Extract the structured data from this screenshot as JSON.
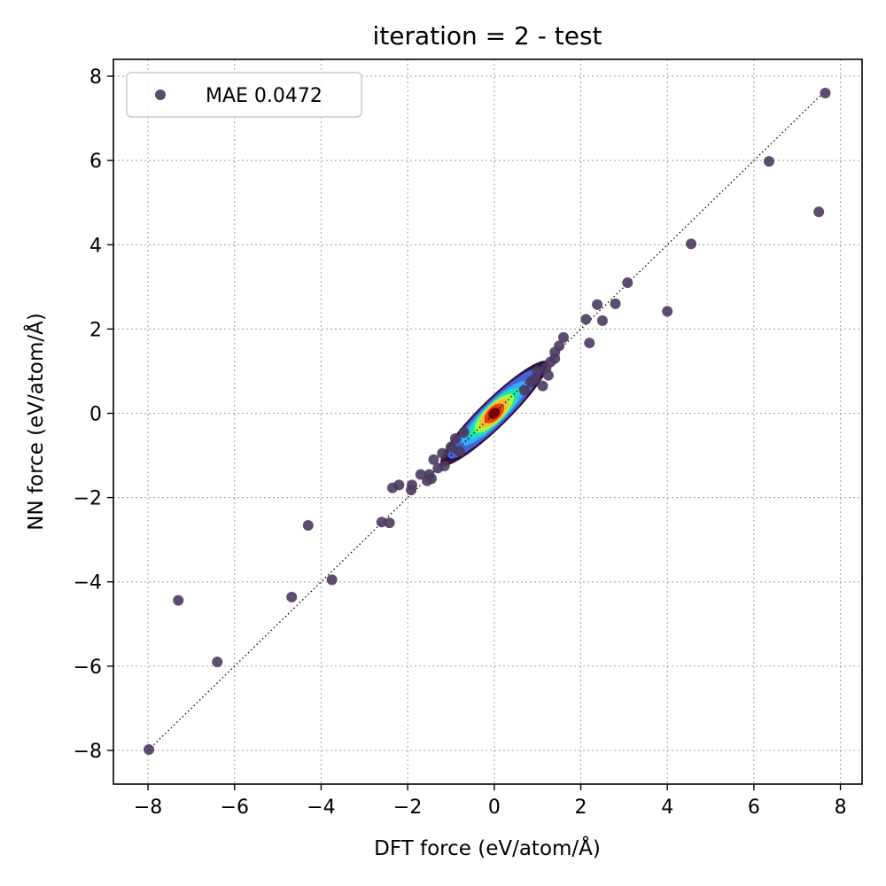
{
  "chart_data": {
    "type": "scatter",
    "title": "iteration = 2 - test",
    "xlabel": "DFT force (eV/atom/Å)",
    "ylabel": "NN force (eV/atom/Å)",
    "xlim": [
      -8.8,
      8.5
    ],
    "ylim": [
      -8.8,
      8.4
    ],
    "xticks": [
      -8,
      -6,
      -4,
      -2,
      0,
      2,
      4,
      6,
      8
    ],
    "yticks": [
      -8,
      -6,
      -4,
      -2,
      0,
      2,
      4,
      6,
      8
    ],
    "xtick_labels": [
      "−8",
      "−6",
      "−4",
      "−2",
      "0",
      "2",
      "4",
      "6",
      "8"
    ],
    "ytick_labels": [
      "−8",
      "−6",
      "−4",
      "−2",
      "0",
      "2",
      "4",
      "6",
      "8"
    ],
    "grid": true,
    "grid_style": "dotted",
    "reference_line": {
      "from": [
        -8,
        -8
      ],
      "to": [
        7.7,
        7.7
      ],
      "style": "dotted"
    },
    "legend": {
      "position": "top-left",
      "entries": [
        "MAE 0.0472"
      ]
    },
    "colormap": "turbo-density",
    "series": [
      {
        "name": "MAE 0.0472",
        "color": "#4b3a5e",
        "points": [
          [
            7.65,
            7.6
          ],
          [
            6.35,
            5.98
          ],
          [
            7.5,
            4.78
          ],
          [
            4.55,
            4.02
          ],
          [
            4.0,
            2.42
          ],
          [
            3.08,
            3.1
          ],
          [
            2.8,
            2.6
          ],
          [
            2.38,
            2.58
          ],
          [
            2.5,
            2.2
          ],
          [
            2.12,
            2.23
          ],
          [
            2.2,
            1.67
          ],
          [
            1.6,
            1.8
          ],
          [
            1.5,
            1.6
          ],
          [
            1.4,
            1.45
          ],
          [
            1.3,
            1.22
          ],
          [
            1.2,
            1.08
          ],
          [
            1.25,
            0.9
          ],
          [
            1.4,
            1.3
          ],
          [
            1.12,
            0.65
          ],
          [
            0.95,
            0.82
          ],
          [
            0.85,
            0.75
          ],
          [
            1.0,
            1.0
          ],
          [
            0.7,
            0.55
          ],
          [
            -1.2,
            -0.95
          ],
          [
            -1.4,
            -1.1
          ],
          [
            -1.0,
            -0.8
          ],
          [
            -1.15,
            -1.25
          ],
          [
            -1.3,
            -1.3
          ],
          [
            -1.5,
            -1.45
          ],
          [
            -1.45,
            -1.55
          ],
          [
            -1.7,
            -1.45
          ],
          [
            -1.55,
            -1.6
          ],
          [
            -1.9,
            -1.7
          ],
          [
            -1.92,
            -1.82
          ],
          [
            -2.2,
            -1.7
          ],
          [
            -2.35,
            -1.77
          ],
          [
            -2.42,
            -2.6
          ],
          [
            -2.6,
            -2.58
          ],
          [
            -0.9,
            -0.6
          ],
          [
            -0.8,
            -0.9
          ],
          [
            -0.7,
            -0.45
          ],
          [
            -3.75,
            -3.95
          ],
          [
            -4.3,
            -2.66
          ],
          [
            -4.68,
            -4.36
          ],
          [
            -6.4,
            -5.9
          ],
          [
            -7.3,
            -4.44
          ],
          [
            -7.98,
            -7.98
          ]
        ]
      }
    ],
    "density_band": {
      "description": "dense cloud of points along the diagonal",
      "x_range": [
        -1.2,
        1.2
      ],
      "colors": [
        "#30123b",
        "#4662d7",
        "#36aaf9",
        "#1ae4b6",
        "#a2fc3c",
        "#fabb39",
        "#e4460a",
        "#7a0403"
      ]
    }
  }
}
